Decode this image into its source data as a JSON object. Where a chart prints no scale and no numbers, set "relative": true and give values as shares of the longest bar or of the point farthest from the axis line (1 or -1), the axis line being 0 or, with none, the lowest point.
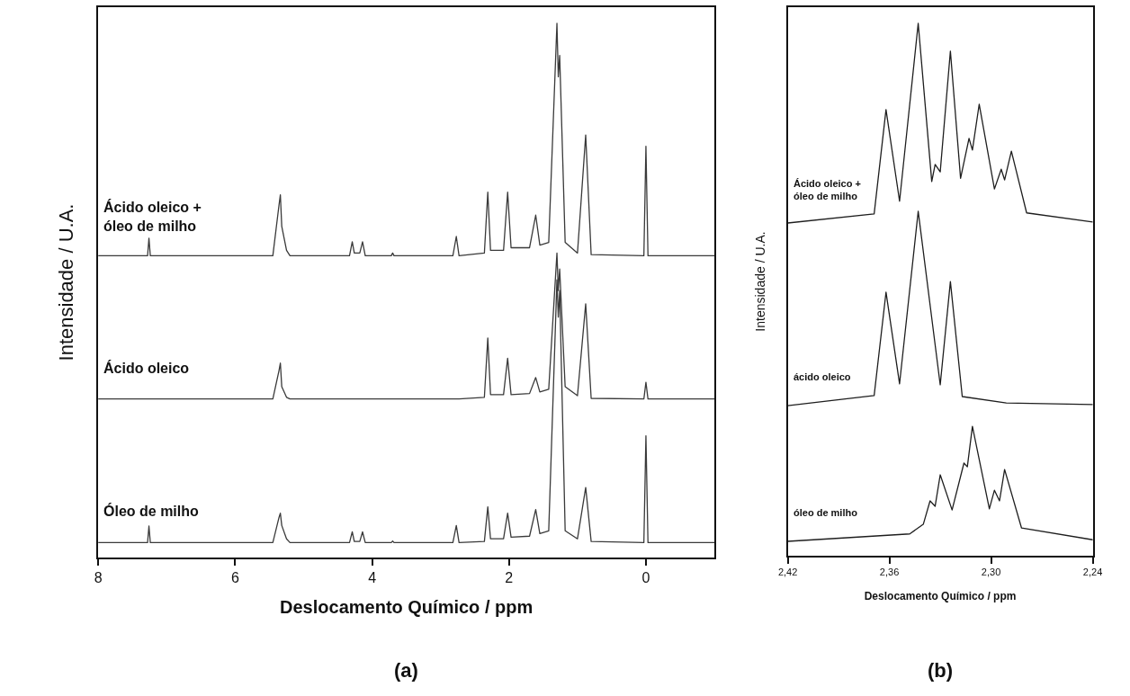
{
  "chart_data": [
    {
      "type": "line",
      "title": "(a)",
      "xlabel": "Deslocamento Químico / ppm",
      "ylabel": "Intensidade / U.A.",
      "relative": true,
      "tick_labels": "x",
      "xlim": [
        8,
        -1
      ],
      "xticks": [
        8,
        6,
        4,
        2,
        0
      ],
      "x": [
        8,
        7.28,
        7.26,
        7.24,
        5.45,
        5.36,
        5.34,
        5.32,
        5.25,
        5.2,
        4.33,
        4.29,
        4.26,
        4.18,
        4.14,
        4.1,
        3.72,
        3.7,
        3.68,
        2.82,
        2.77,
        2.73,
        2.36,
        2.31,
        2.27,
        2.08,
        2.02,
        1.97,
        1.7,
        1.61,
        1.55,
        1.42,
        1.3,
        1.28,
        1.26,
        1.18,
        1.0,
        0.88,
        0.8,
        0.03,
        0,
        -0.03,
        -1
      ],
      "series": [
        {
          "name": "Óleo de milho",
          "color": "#3a3a3a",
          "values": [
            0.028,
            0.028,
            0.059,
            0.028,
            0.028,
            0.075,
            0.083,
            0.06,
            0.035,
            0.028,
            0.028,
            0.048,
            0.03,
            0.03,
            0.048,
            0.028,
            0.028,
            0.031,
            0.028,
            0.028,
            0.06,
            0.028,
            0.03,
            0.095,
            0.035,
            0.035,
            0.083,
            0.038,
            0.04,
            0.09,
            0.045,
            0.05,
            0.52,
            0.45,
            0.5,
            0.05,
            0.035,
            0.131,
            0.03,
            0.028,
            0.228,
            0.028,
            0.028
          ]
        },
        {
          "name": "Ácido oleico",
          "color": "#3a3a3a",
          "values": [
            0.297,
            0.297,
            0.297,
            0.297,
            0.297,
            0.35,
            0.364,
            0.32,
            0.3,
            0.297,
            0.297,
            0.297,
            0.297,
            0.297,
            0.297,
            0.297,
            0.297,
            0.297,
            0.297,
            0.297,
            0.297,
            0.297,
            0.3,
            0.411,
            0.305,
            0.305,
            0.373,
            0.305,
            0.307,
            0.337,
            0.31,
            0.315,
            0.57,
            0.5,
            0.54,
            0.32,
            0.303,
            0.475,
            0.298,
            0.297,
            0.328,
            0.297,
            0.297
          ]
        },
        {
          "name": "Ácido oleico +\nóleo de milho",
          "color": "#3a3a3a",
          "values": [
            0.565,
            0.565,
            0.598,
            0.565,
            0.565,
            0.66,
            0.679,
            0.62,
            0.575,
            0.565,
            0.565,
            0.591,
            0.57,
            0.57,
            0.591,
            0.565,
            0.565,
            0.57,
            0.565,
            0.565,
            0.601,
            0.565,
            0.57,
            0.684,
            0.575,
            0.575,
            0.684,
            0.58,
            0.58,
            0.641,
            0.585,
            0.59,
            1.0,
            0.9,
            0.94,
            0.59,
            0.57,
            0.791,
            0.567,
            0.565,
            0.77,
            0.565,
            0.565
          ]
        }
      ]
    },
    {
      "type": "line",
      "title": "(b)",
      "xlabel": "Deslocamento Químico / ppm",
      "ylabel": "Intensidade / U.A.",
      "relative": true,
      "tick_labels": "x",
      "xlim": [
        2.42,
        2.24
      ],
      "xticks": [
        {
          "value": 2.42,
          "label": "2,42"
        },
        {
          "value": 2.36,
          "label": "2,36"
        },
        {
          "value": 2.3,
          "label": "2,30"
        },
        {
          "value": 2.24,
          "label": "2,24"
        }
      ],
      "series": [
        {
          "name": "óleo de milho",
          "color": "#1e1e1e",
          "x": [
            2.42,
            2.348,
            2.34,
            2.336,
            2.333,
            2.33,
            2.323,
            2.316,
            2.314,
            2.311,
            2.301,
            2.298,
            2.295,
            2.292,
            2.282,
            2.24
          ],
          "values": [
            0.027,
            0.041,
            0.059,
            0.103,
            0.093,
            0.152,
            0.086,
            0.174,
            0.167,
            0.243,
            0.088,
            0.123,
            0.103,
            0.162,
            0.052,
            0.03
          ]
        },
        {
          "name": "ácido oleico",
          "color": "#1e1e1e",
          "x": [
            2.42,
            2.369,
            2.362,
            2.354,
            2.343,
            2.33,
            2.324,
            2.317,
            2.291,
            2.24
          ],
          "values": [
            0.282,
            0.301,
            0.495,
            0.323,
            0.647,
            0.321,
            0.515,
            0.299,
            0.287,
            0.284
          ]
        },
        {
          "name": "Ácido oleico +\nóleo de milho",
          "color": "#1e1e1e",
          "x": [
            2.42,
            2.369,
            2.362,
            2.354,
            2.343,
            2.335,
            2.333,
            2.33,
            2.324,
            2.318,
            2.313,
            2.311,
            2.307,
            2.298,
            2.294,
            2.292,
            2.288,
            2.279,
            2.24
          ],
          "values": [
            0.625,
            0.642,
            0.838,
            0.666,
            1.0,
            0.703,
            0.735,
            0.721,
            0.948,
            0.709,
            0.784,
            0.762,
            0.848,
            0.689,
            0.726,
            0.706,
            0.76,
            0.644,
            0.627
          ]
        }
      ]
    }
  ]
}
